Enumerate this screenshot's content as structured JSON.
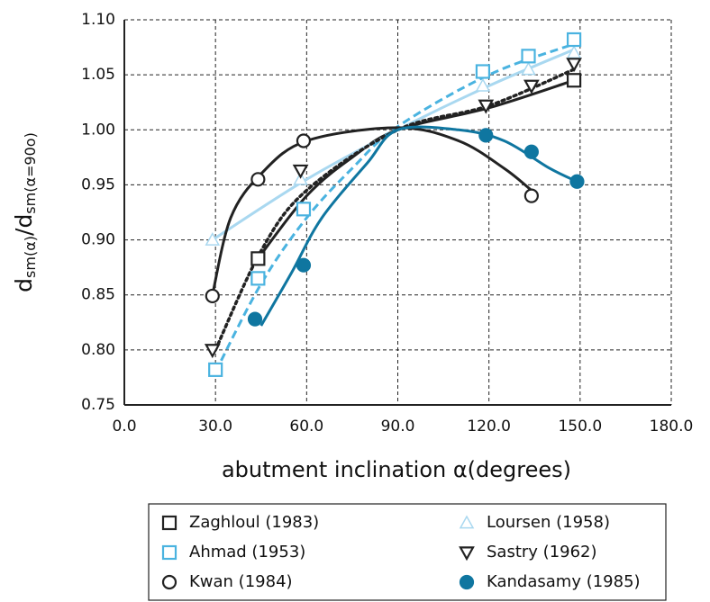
{
  "chart_data": {
    "type": "scatter",
    "xlabel": "abutment inclination  α(degrees)",
    "ylabel": {
      "d1": "d",
      "sub1": "sm(α)",
      "d2": "/d",
      "sub2": "sm(α=90o)"
    },
    "xlim": [
      0,
      180
    ],
    "xticks": [
      {
        "value": 0,
        "label": "0.0"
      },
      {
        "value": 30,
        "label": "30.0"
      },
      {
        "value": 60,
        "label": "60.0"
      },
      {
        "value": 90,
        "label": "90.0"
      },
      {
        "value": 120,
        "label": "120.0"
      },
      {
        "value": 150,
        "label": "150.0"
      },
      {
        "value": 180,
        "label": "180.0"
      }
    ],
    "ylim": [
      0.75,
      1.1
    ],
    "yticks": [
      0.75,
      {
        "value": 0.8,
        "label": "0.80"
      },
      0.85,
      {
        "value": 0.9,
        "label": "0.90"
      },
      0.95,
      {
        "value": 1.0,
        "label": "1.00"
      },
      1.05,
      {
        "value": 1.1,
        "label": "1.10"
      }
    ],
    "grid": true,
    "series": [
      {
        "name": "Zaghloul  (1983)",
        "color": "#222222",
        "marker": "square",
        "line": "solid",
        "x": [
          44,
          148
        ],
        "values": [
          0.883,
          1.045
        ],
        "curve": {
          "x": [
            44,
            60,
            75,
            90,
            120,
            148
          ],
          "y": [
            0.883,
            0.94,
            0.975,
            1.0,
            1.02,
            1.045
          ]
        }
      },
      {
        "name": "Loursen  (1958)",
        "color": "#a9d8f0",
        "marker": "triangle",
        "line": "solid",
        "x": [
          29,
          58,
          118,
          133,
          148
        ],
        "values": [
          0.9,
          0.955,
          1.04,
          1.055,
          1.07
        ],
        "curve": {
          "x": [
            29,
            60,
            90,
            120,
            148
          ],
          "y": [
            0.9,
            0.955,
            1.0,
            1.04,
            1.073
          ]
        }
      },
      {
        "name": "Ahmad  (1953)",
        "color": "#4ab3e0",
        "marker": "square",
        "line": "dashed",
        "x": [
          30,
          44,
          59,
          118,
          133,
          148
        ],
        "values": [
          0.782,
          0.865,
          0.928,
          1.053,
          1.067,
          1.082
        ],
        "curve": {
          "x": [
            30,
            45,
            60,
            75,
            90,
            120,
            148
          ],
          "y": [
            0.78,
            0.86,
            0.92,
            0.965,
            1.003,
            1.05,
            1.078
          ]
        }
      },
      {
        "name": "Sastry  (1962)",
        "color": "#222222",
        "marker": "triangle-down",
        "line": "dotted",
        "x": [
          29,
          58,
          119,
          134,
          148
        ],
        "values": [
          0.8,
          0.963,
          1.022,
          1.04,
          1.06
        ],
        "curve": {
          "x": [
            30,
            45,
            60,
            90,
            120,
            148
          ],
          "y": [
            0.8,
            0.89,
            0.945,
            1.0,
            1.022,
            1.055
          ]
        }
      },
      {
        "name": "Kwan  (1984)",
        "color": "#222222",
        "marker": "circle",
        "line": "solid",
        "x": [
          29,
          44,
          59,
          134
        ],
        "values": [
          0.849,
          0.955,
          0.99,
          0.94
        ],
        "curve": {
          "x": [
            29,
            35,
            45,
            60,
            90,
            110,
            125,
            134
          ],
          "y": [
            0.85,
            0.92,
            0.96,
            0.99,
            1.002,
            0.99,
            0.965,
            0.945
          ]
        }
      },
      {
        "name": "Kandasamy (1985)",
        "color": "#0f76a0",
        "marker": "filled-circle",
        "line": "solid",
        "x": [
          43,
          59,
          119,
          134,
          149
        ],
        "values": [
          0.828,
          0.877,
          0.995,
          0.98,
          0.953
        ],
        "curve": {
          "x": [
            45,
            55,
            65,
            80,
            90,
            110,
            125,
            140,
            149
          ],
          "y": [
            0.822,
            0.87,
            0.92,
            0.97,
            1.0,
            1.0,
            0.99,
            0.965,
            0.953
          ]
        }
      }
    ]
  }
}
